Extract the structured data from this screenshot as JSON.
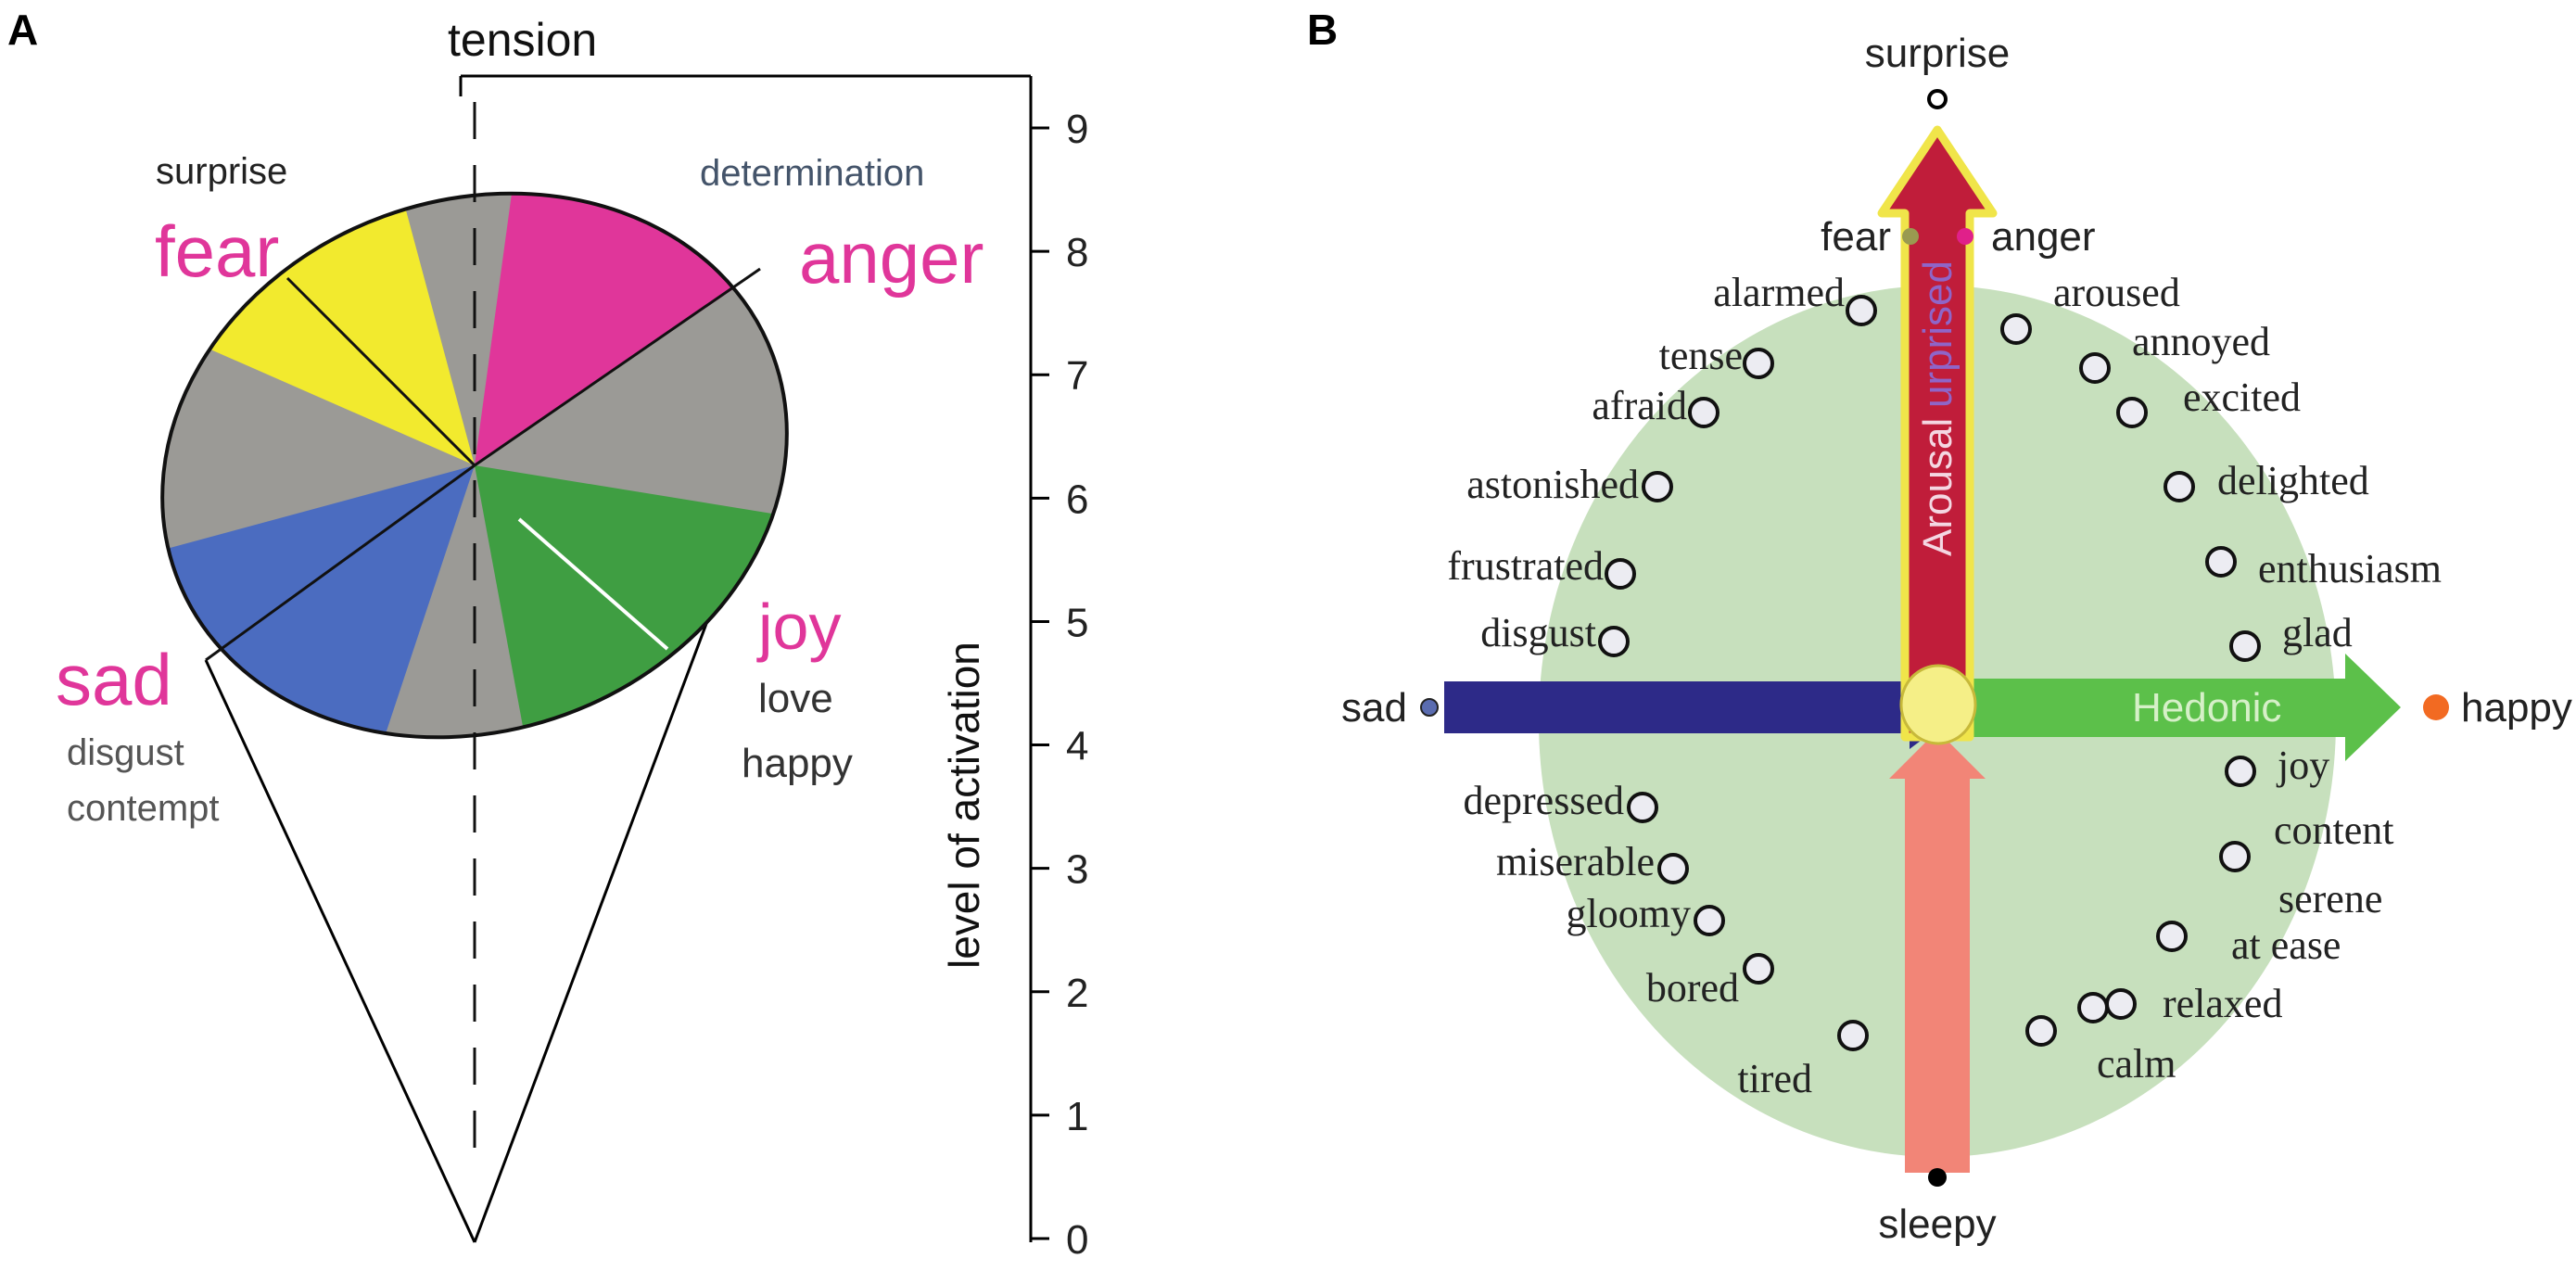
{
  "panel_a": {
    "letter": "A",
    "tension_label": "tension",
    "axis_label": "level of activation",
    "axis_ticks": [
      "0",
      "1",
      "2",
      "3",
      "4",
      "5",
      "6",
      "7",
      "8",
      "9"
    ],
    "labels": {
      "surprise": "surprise",
      "fear": "fear",
      "determination": "determination",
      "anger": "anger",
      "sad": "sad",
      "disgust": "disgust",
      "contempt": "contempt",
      "joy": "joy",
      "love": "love",
      "happy": "happy"
    },
    "colors": {
      "fear": "#f2ea2e",
      "anger": "#e0369a",
      "sad": "#4b6cc0",
      "joy": "#3f9e42",
      "neutral": "#9b9a96",
      "label_pink": "#e0369a",
      "label_gray": "#555555"
    }
  },
  "panel_b": {
    "letter": "B",
    "poles": {
      "top": "surprise",
      "bottom": "sleepy",
      "left": "sad",
      "right": "happy"
    },
    "near_top": {
      "left": "fear",
      "right": "anger"
    },
    "axis_labels": {
      "vertical": "Arousal",
      "vertical_overlay": "urprised",
      "horizontal": "Hedonic"
    },
    "emotions_left": [
      "alarmed",
      "tense",
      "afraid",
      "astonished",
      "frustrated",
      "disgust",
      "depressed",
      "miserable",
      "gloomy",
      "bored",
      "tired"
    ],
    "emotions_right": [
      "aroused",
      "annoyed",
      "excited",
      "delighted",
      "enthusiasm",
      "glad",
      "joy",
      "content",
      "serene",
      "at ease",
      "relaxed",
      "calm"
    ],
    "colors": {
      "ellipse": "#c7e0bd",
      "arousal_arrow": "#c01d3a",
      "arousal_outline": "#f0e54a",
      "sleepy_arrow": "#f28577",
      "sad_arrow": "#2d2a88",
      "hedonic_arrow": "#5cc04a",
      "happy_dot": "#f26a22",
      "anger_dot": "#e0208a",
      "fear_dot": "#9a9a50"
    }
  }
}
